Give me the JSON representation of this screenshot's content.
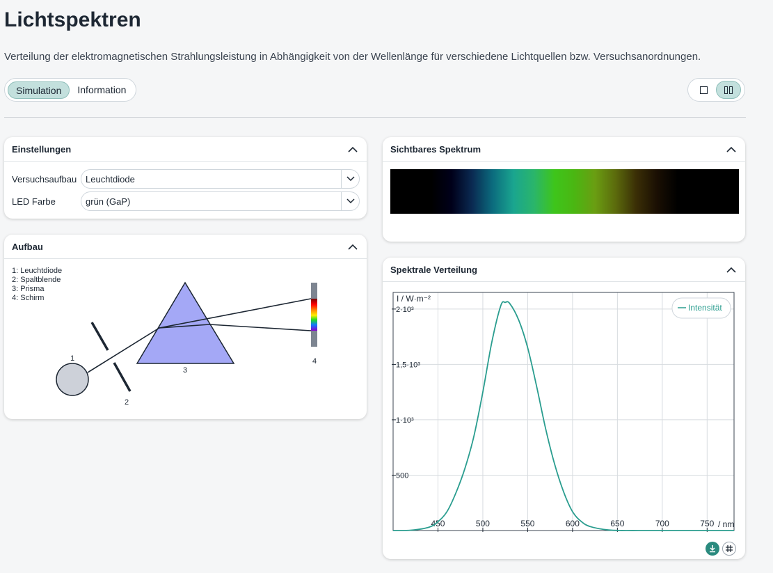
{
  "header": {
    "title": "Lichtspektren",
    "description": "Verteilung der elektromagnetischen Strahlungsleistung in Abhängigkeit von der Wellenlänge für verschiedene Lichtquellen bzw. Versuchsanordnungen."
  },
  "tabs": [
    {
      "label": "Simulation",
      "active": true
    },
    {
      "label": "Information",
      "active": false
    }
  ],
  "view_toggle": {
    "single_icon": "single-column-icon",
    "split_icon": "two-column-icon",
    "active": "split"
  },
  "settings": {
    "title": "Einstellungen",
    "rows": [
      {
        "label": "Versuchsaufbau",
        "value": "Leuchtdiode"
      },
      {
        "label": "LED Farbe",
        "value": "grün (GaP)"
      }
    ]
  },
  "setup": {
    "title": "Aufbau",
    "legend": [
      "1: Leuchtdiode",
      "2: Spaltblende",
      "3: Prisma",
      "4: Schirm"
    ],
    "labels": {
      "led": "1",
      "slit": "2",
      "prism": "3",
      "screen": "4"
    }
  },
  "visible_spectrum": {
    "title": "Sichtbares Spektrum",
    "colors": [
      "#000000",
      "#000000",
      "#000000",
      "#00001a",
      "#0a2a52",
      "#0b6c7e",
      "#1aa58f",
      "#2ab56b",
      "#3ec51b",
      "#4bb612",
      "#6a9d12",
      "#5b6a0c",
      "#3a2e06",
      "#1a0f03",
      "#000000",
      "#000000",
      "#000000",
      "#000000"
    ]
  },
  "spectral": {
    "title": "Spektrale Verteilung",
    "legend": "Intensität",
    "y_axis_label": "I / W·m⁻²",
    "x_axis_label": "/ nm",
    "line_color": "#2a9d8f",
    "download_icon": "download-icon",
    "grid_icon": "grid-icon"
  },
  "chart_data": {
    "type": "line",
    "xlabel": "/ nm",
    "ylabel": "I / W·m⁻²",
    "xlim": [
      400,
      780
    ],
    "ylim": [
      0,
      2150
    ],
    "x_ticks": [
      450,
      500,
      550,
      600,
      650,
      700,
      750
    ],
    "y_ticks": [
      {
        "value": 500,
        "label": "500"
      },
      {
        "value": 1000,
        "label": "1·10³"
      },
      {
        "value": 1500,
        "label": "1,5·10³"
      },
      {
        "value": 2000,
        "label": "2·10³"
      }
    ],
    "grid": true,
    "legend_position": "top-right",
    "series": [
      {
        "name": "Intensität",
        "x": [
          400,
          420,
          440,
          450,
          460,
          470,
          480,
          490,
          500,
          510,
          520,
          525,
          530,
          540,
          550,
          560,
          570,
          580,
          590,
          600,
          610,
          620,
          640,
          660,
          680,
          700,
          740,
          780
        ],
        "y": [
          0,
          3,
          30,
          80,
          170,
          340,
          560,
          850,
          1250,
          1700,
          2030,
          2060,
          2050,
          1900,
          1650,
          1300,
          920,
          600,
          350,
          170,
          80,
          35,
          5,
          0,
          0,
          0,
          0,
          0
        ]
      }
    ]
  }
}
